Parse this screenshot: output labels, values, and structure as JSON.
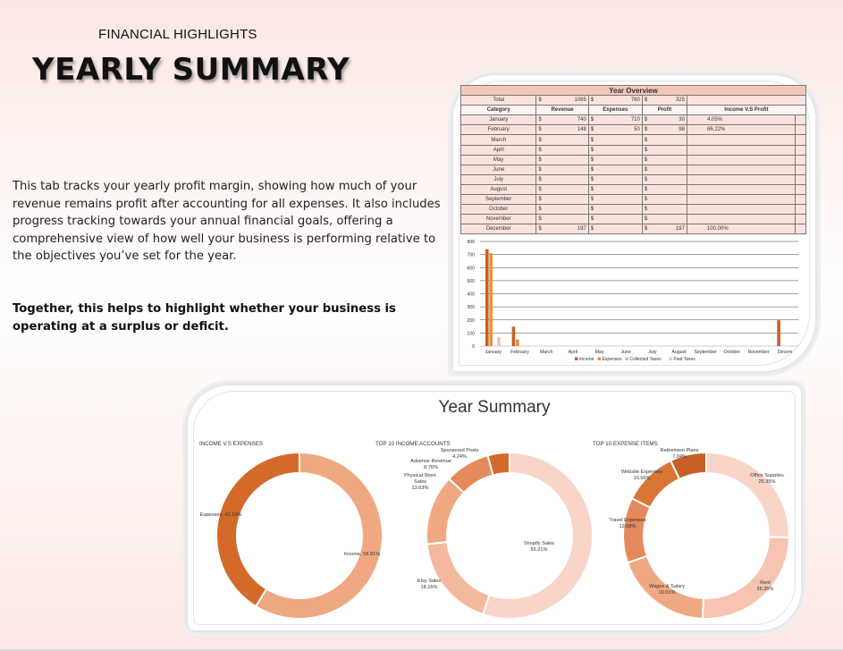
{
  "kicker": "FINANCIAL HIGHLIGHTS",
  "title": "YEARLY SUMMARY",
  "description": "This tab tracks your yearly profit margin, showing how much of your revenue remains profit after accounting for all expenses. It also includes progress tracking towards your annual financial goals, offering a comprehensive view of how well your business is performing relative to the objectives you’ve set for the year.",
  "together": "Together, this helps to highlight whether your business is operating at a surplus or deficit.",
  "overview": {
    "title": "Year Overview",
    "total_label": "Total",
    "currency": "$",
    "total_revenue": "1085",
    "total_expenses": "760",
    "total_profit": "325",
    "columns": [
      "Category",
      "Revenue",
      "Expenses",
      "Profit",
      "Income V.S Profit"
    ],
    "rows": [
      {
        "category": "January",
        "revenue": "740",
        "expenses": "710",
        "profit": "30",
        "ratio": "4.05%"
      },
      {
        "category": "February",
        "revenue": "148",
        "expenses": "50",
        "profit": "98",
        "ratio": "66.22%"
      },
      {
        "category": "March",
        "revenue": "",
        "expenses": "",
        "profit": "",
        "ratio": ""
      },
      {
        "category": "April",
        "revenue": "",
        "expenses": "",
        "profit": "",
        "ratio": ""
      },
      {
        "category": "May",
        "revenue": "",
        "expenses": "",
        "profit": "",
        "ratio": ""
      },
      {
        "category": "June",
        "revenue": "",
        "expenses": "",
        "profit": "",
        "ratio": ""
      },
      {
        "category": "July",
        "revenue": "",
        "expenses": "",
        "profit": "",
        "ratio": ""
      },
      {
        "category": "August",
        "revenue": "",
        "expenses": "",
        "profit": "",
        "ratio": ""
      },
      {
        "category": "September",
        "revenue": "",
        "expenses": "",
        "profit": "",
        "ratio": ""
      },
      {
        "category": "October",
        "revenue": "",
        "expenses": "",
        "profit": "",
        "ratio": ""
      },
      {
        "category": "November",
        "revenue": "",
        "expenses": "",
        "profit": "",
        "ratio": ""
      },
      {
        "category": "December",
        "revenue": "197",
        "expenses": "",
        "profit": "197",
        "ratio": "100.00%"
      }
    ]
  },
  "chart_data": [
    {
      "type": "bar",
      "categories": [
        "January",
        "February",
        "March",
        "April",
        "May",
        "June",
        "July",
        "August",
        "September",
        "October",
        "November",
        "Decem"
      ],
      "series": [
        {
          "name": "Income",
          "values": [
            740,
            148,
            0,
            0,
            0,
            0,
            0,
            0,
            0,
            0,
            0,
            197
          ]
        },
        {
          "name": "Expenses",
          "values": [
            710,
            50,
            0,
            0,
            0,
            0,
            0,
            0,
            0,
            0,
            0,
            0
          ]
        },
        {
          "name": "Collected Taxes",
          "values": [
            0,
            0,
            0,
            0,
            0,
            0,
            0,
            0,
            0,
            0,
            0,
            0
          ]
        },
        {
          "name": "Paid Taxes",
          "values": [
            70,
            0,
            0,
            0,
            0,
            0,
            0,
            0,
            0,
            0,
            0,
            0
          ]
        }
      ],
      "ylim": [
        0,
        800
      ],
      "yticks": [
        0,
        100,
        200,
        300,
        400,
        500,
        600,
        700,
        800
      ],
      "grid": true,
      "legend": "bottom",
      "colors": [
        "#c85f27",
        "#e8913e",
        "#f3b08a",
        "#f6c4b0"
      ]
    },
    {
      "type": "pie",
      "title": "INCOME V.S EXPENSES",
      "labels": [
        "Income",
        "Expenses"
      ],
      "values": [
        58.81,
        41.19
      ],
      "display": [
        "Income, 58.81%",
        "Expenses, 41.19%"
      ],
      "colors": [
        "#f0a882",
        "#d46a2a"
      ]
    },
    {
      "type": "pie",
      "title": "TOP 10 INCOME ACCOUNTS",
      "labels": [
        "Shopify Sales",
        "Etsy Sales",
        "Physical Store Sales",
        "Adsense Revenue",
        "Sponsored Posts"
      ],
      "values": [
        55.21,
        18.16,
        13.63,
        8.76,
        4.24
      ],
      "display": [
        "Shopify Sales 55.21%",
        "Etsy Sales 18.16%",
        "Physical Store Sales 13.63%",
        "Adsense Revenue 8.76%",
        "Sponsored Posts 4.24%"
      ],
      "colors": [
        "#f9d5c8",
        "#f3b99e",
        "#f0a882",
        "#e58a5c",
        "#d46a2a"
      ]
    },
    {
      "type": "pie",
      "title": "TOP 10 EXPENSE ITEMS",
      "labels": [
        "Office Supplies",
        "Rent",
        "Wages & Salary",
        "Travel Expenses",
        "Website Expenses",
        "Retirement Plans"
      ],
      "values": [
        25.35,
        25.35,
        19.01,
        12.68,
        10.56,
        7.04
      ],
      "display": [
        "Office Supplies 25.35%",
        "Rent 25.35%",
        "Wages & Salary 19.01%",
        "Travel Expenses 12.68%",
        "Website Expenses 10.56%",
        "Retirement Plans 7.04%"
      ],
      "colors": [
        "#f9d5c8",
        "#f6c4b0",
        "#f0a882",
        "#e58a5c",
        "#d97636",
        "#c85f27"
      ]
    }
  ],
  "summary_title": "Year Summary",
  "legend_labels": [
    "Income",
    "Expenses",
    "Collected Taxes",
    "Paid Taxes"
  ]
}
